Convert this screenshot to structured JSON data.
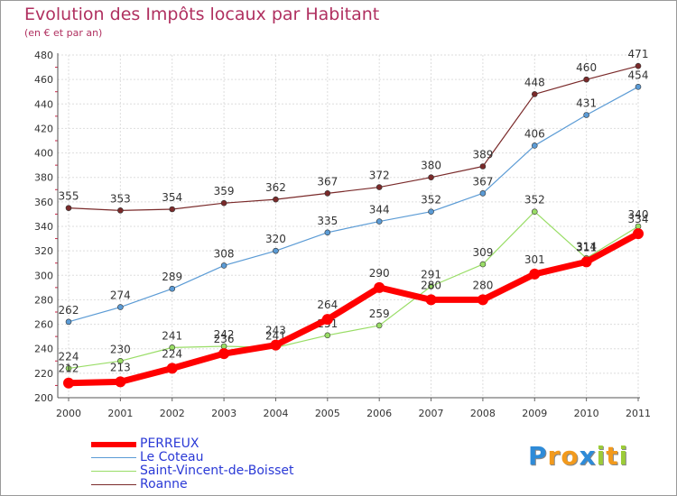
{
  "chart_data": {
    "type": "line",
    "title": "Evolution des Impôts locaux par Habitant",
    "subtitle": "(en € et par an)",
    "x": [
      "2000",
      "2001",
      "2002",
      "2003",
      "2004",
      "2005",
      "2006",
      "2007",
      "2008",
      "2009",
      "2010",
      "2011"
    ],
    "ylim": [
      200,
      480
    ],
    "yticks": [
      200,
      220,
      240,
      260,
      280,
      300,
      320,
      340,
      360,
      380,
      400,
      420,
      440,
      460,
      480
    ],
    "grid": true,
    "legend_position": "bottom-left",
    "series": [
      {
        "name": "PERREUX",
        "color": "#ff0000",
        "values": [
          212,
          213,
          224,
          236,
          243,
          264,
          290,
          280,
          280,
          301,
          311,
          334
        ]
      },
      {
        "name": "Le Coteau",
        "color": "#5b9bd5",
        "values": [
          262,
          274,
          289,
          308,
          320,
          335,
          344,
          352,
          367,
          406,
          431,
          454
        ]
      },
      {
        "name": "Saint-Vincent-de-Boisset",
        "color": "#99dd66",
        "values": [
          224,
          230,
          241,
          242,
          241,
          251,
          259,
          291,
          309,
          352,
          314,
          340
        ]
      },
      {
        "name": "Roanne",
        "color": "#7a2a2a",
        "values": [
          355,
          353,
          354,
          359,
          362,
          367,
          372,
          380,
          389,
          448,
          460,
          471
        ]
      }
    ]
  },
  "logo": {
    "letters": [
      {
        "char": "P",
        "color": "#2e8bd8"
      },
      {
        "char": "r",
        "color": "#f29a1d"
      },
      {
        "char": "o",
        "color": "#f29a1d"
      },
      {
        "char": "x",
        "color": "#2e8bd8"
      },
      {
        "char": "i",
        "color": "#9ccc38"
      },
      {
        "char": "t",
        "color": "#f29a1d"
      },
      {
        "char": "i",
        "color": "#9ccc38"
      }
    ]
  }
}
